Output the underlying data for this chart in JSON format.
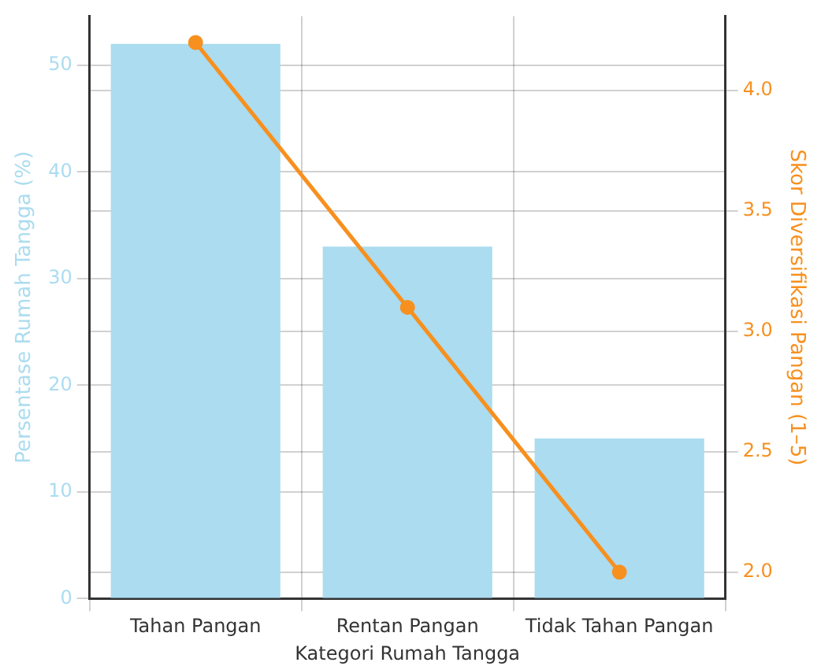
{
  "chart_data": {
    "type": "bar",
    "categories": [
      "Tahan Pangan",
      "Rentan Pangan",
      "Tidak Tahan Pangan"
    ],
    "xlabel": "Kategori Rumah Tangga",
    "ylabel": "Persentase Rumah Tangga (%)",
    "y2label": "Skor Diversifikasi Pangan (1–5)",
    "series": [
      {
        "color": "#abdcf0",
        "values": [
          52,
          33,
          15
        ]
      },
      {
        "type": "line",
        "axis": "y2",
        "color": "#f7901e",
        "values": [
          4.2,
          3.1,
          2.0
        ]
      }
    ],
    "ylim": [
      0,
      54.6
    ],
    "yticks": [
      0,
      10,
      20,
      30,
      40,
      50
    ],
    "y2lim": [
      1.89,
      4.31
    ],
    "y2ticks": [
      {
        "value": 2,
        "label": "2.0"
      },
      {
        "value": 2.5,
        "label": "2.5"
      },
      {
        "value": 3,
        "label": "3.0"
      },
      {
        "value": 3.5,
        "label": "3.5"
      },
      {
        "value": 4,
        "label": "4.0"
      }
    ],
    "grid": true,
    "marker": "circle",
    "legend": false
  }
}
